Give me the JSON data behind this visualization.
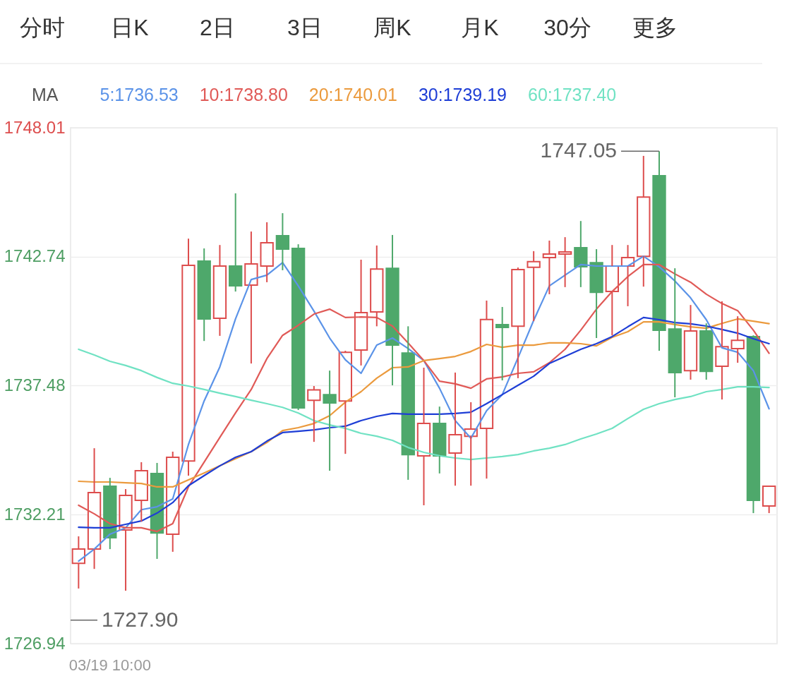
{
  "chart_data": {
    "type": "candlestick",
    "categories": [
      null,
      null,
      "03/19 10:00",
      null,
      null,
      null,
      null,
      null,
      null,
      null,
      null,
      null,
      null,
      null,
      null,
      null,
      null,
      null,
      null,
      null,
      null,
      null,
      null,
      null,
      null,
      null,
      null,
      null,
      null,
      null,
      null,
      null,
      null,
      null,
      null,
      null,
      null,
      null,
      null,
      null,
      null,
      null,
      null,
      null,
      null
    ],
    "ohlc": [
      [
        1730.22,
        1731.32,
        1729.19,
        1730.8
      ],
      [
        1730.8,
        1734.92,
        1729.99,
        1733.11
      ],
      [
        1733.37,
        1733.71,
        1730.8,
        1731.26
      ],
      [
        1731.58,
        1733.25,
        1729.1,
        1732.99
      ],
      [
        1732.79,
        1734.35,
        1731.92,
        1734.0
      ],
      [
        1733.89,
        1734.32,
        1730.4,
        1731.46
      ],
      [
        1731.41,
        1734.78,
        1730.69,
        1734.55
      ],
      [
        1734.4,
        1743.48,
        1733.8,
        1742.39
      ],
      [
        1742.56,
        1743.08,
        1739.3,
        1740.2
      ],
      [
        1740.23,
        1743.22,
        1739.51,
        1742.36
      ],
      [
        1742.36,
        1745.33,
        1741.32,
        1741.55
      ],
      [
        1741.58,
        1743.77,
        1738.38,
        1742.45
      ],
      [
        1742.36,
        1744.15,
        1741.7,
        1743.31
      ],
      [
        1743.6,
        1744.52,
        1742.19,
        1743.05
      ],
      [
        1743.08,
        1743.25,
        1736.48,
        1736.57
      ],
      [
        1736.88,
        1737.46,
        1735.18,
        1737.3
      ],
      [
        1737.11,
        1738.09,
        1734.0,
        1736.77
      ],
      [
        1736.85,
        1738.9,
        1734.69,
        1738.84
      ],
      [
        1738.93,
        1742.62,
        1738.3,
        1740.46
      ],
      [
        1740.49,
        1743.2,
        1739.9,
        1742.24
      ],
      [
        1742.27,
        1743.63,
        1737.49,
        1739.13
      ],
      [
        1738.81,
        1739.9,
        1733.63,
        1734.66
      ],
      [
        1734.61,
        1738.21,
        1732.59,
        1735.93
      ],
      [
        1735.93,
        1736.62,
        1733.89,
        1734.61
      ],
      [
        1734.72,
        1738.01,
        1733.39,
        1735.47
      ],
      [
        1735.41,
        1736.8,
        1733.39,
        1735.7
      ],
      [
        1735.73,
        1740.95,
        1733.68,
        1740.18
      ],
      [
        1739.97,
        1740.69,
        1737.69,
        1739.85
      ],
      [
        1739.9,
        1742.3,
        1737.78,
        1742.22
      ],
      [
        1742.31,
        1742.97,
        1740.11,
        1742.54
      ],
      [
        1742.71,
        1743.4,
        1741.21,
        1742.85
      ],
      [
        1742.85,
        1743.54,
        1741.5,
        1742.94
      ],
      [
        1743.11,
        1744.2,
        1741.5,
        1742.33
      ],
      [
        1742.5,
        1743.05,
        1739.42,
        1741.29
      ],
      [
        1741.32,
        1743.22,
        1739.53,
        1742.36
      ],
      [
        1742.36,
        1743.22,
        1740.72,
        1742.71
      ],
      [
        1742.76,
        1746.86,
        1741.52,
        1745.18
      ],
      [
        1746.05,
        1747.05,
        1738.9,
        1739.74
      ],
      [
        1739.79,
        1742.27,
        1737.0,
        1738.01
      ],
      [
        1738.09,
        1740.77,
        1737.72,
        1739.71
      ],
      [
        1739.71,
        1740.02,
        1737.72,
        1738.06
      ],
      [
        1738.27,
        1740.92,
        1736.91,
        1739.07
      ],
      [
        1738.99,
        1740.31,
        1738.41,
        1739.33
      ],
      [
        1739.48,
        1739.53,
        1732.27,
        1732.79
      ],
      [
        1732.56,
        1733.37,
        1732.27,
        1733.37
      ]
    ],
    "colors": [
      "#dd4d4d",
      "#dd4d4d",
      "#4ea86b",
      "#dd4d4d",
      "#dd4d4d",
      "#4ea86b",
      "#dd4d4d",
      "#dd4d4d",
      "#4ea86b",
      "#dd4d4d",
      "#4ea86b",
      "#dd4d4d",
      "#dd4d4d",
      "#4ea86b",
      "#4ea86b",
      "#dd4d4d",
      "#4ea86b",
      "#dd4d4d",
      "#dd4d4d",
      "#dd4d4d",
      "#4ea86b",
      "#4ea86b",
      "#dd4d4d",
      "#4ea86b",
      "#dd4d4d",
      "#dd4d4d",
      "#dd4d4d",
      "#4ea86b",
      "#dd4d4d",
      "#dd4d4d",
      "#dd4d4d",
      "#dd4d4d",
      "#4ea86b",
      "#4ea86b",
      "#dd4d4d",
      "#dd4d4d",
      "#dd4d4d",
      "#4ea86b",
      "#4ea86b",
      "#dd4d4d",
      "#4ea86b",
      "#dd4d4d",
      "#dd4d4d",
      "#4ea86b",
      "#dd4d4d"
    ],
    "series": [
      {
        "type": "line",
        "name": "5:1736.53",
        "color": "#5b93e8",
        "values": [
          1730.31,
          1730.8,
          1731.41,
          1731.67,
          1732.41,
          1732.53,
          1732.85,
          1735.07,
          1736.85,
          1738.24,
          1740.2,
          1741.81,
          1741.99,
          1742.5,
          1741.55,
          1740.52,
          1739.42,
          1738.53,
          1737.98,
          1739.13,
          1739.42,
          1738.99,
          1738.5,
          1737.37,
          1736.05,
          1735.33,
          1736.45,
          1737.11,
          1738.61,
          1740.14,
          1741.55,
          1741.99,
          1742.42,
          1742.36,
          1742.36,
          1742.36,
          1742.76,
          1742.33,
          1741.75,
          1741.06,
          1740.17,
          1739.02,
          1738.84,
          1738.09,
          1736.53
        ]
      },
      {
        "type": "line",
        "name": "10:1738.80",
        "color": "#e05a57",
        "values": [
          1732.59,
          1732.24,
          1731.84,
          1731.67,
          1731.67,
          1731.52,
          1731.84,
          1733.34,
          1734.35,
          1735.36,
          1736.36,
          1737.32,
          1738.58,
          1739.53,
          1739.94,
          1740.4,
          1740.6,
          1740.26,
          1740.28,
          1740.26,
          1739.91,
          1739.22,
          1738.5,
          1737.66,
          1737.55,
          1737.37,
          1737.75,
          1737.83,
          1737.98,
          1738.04,
          1738.41,
          1738.96,
          1739.74,
          1740.6,
          1741.32,
          1741.93,
          1742.42,
          1742.42,
          1742.04,
          1741.7,
          1741.21,
          1740.83,
          1740.54,
          1739.74,
          1738.8
        ]
      },
      {
        "type": "line",
        "name": "20:1740.01",
        "color": "#eb9a3d",
        "values": [
          1733.57,
          1733.54,
          1733.54,
          1733.51,
          1733.48,
          1733.34,
          1733.34,
          1733.63,
          1733.91,
          1734.2,
          1734.49,
          1734.78,
          1735.15,
          1735.64,
          1735.76,
          1735.93,
          1736.25,
          1736.8,
          1737.23,
          1737.78,
          1738.21,
          1738.24,
          1738.5,
          1738.58,
          1738.67,
          1738.87,
          1739.16,
          1739.04,
          1739.13,
          1739.13,
          1739.22,
          1739.22,
          1739.19,
          1739.1,
          1739.45,
          1739.68,
          1740.08,
          1740.08,
          1739.97,
          1739.88,
          1739.82,
          1740.02,
          1740.2,
          1740.11,
          1740.01
        ]
      },
      {
        "type": "line",
        "name": "30:1739.19",
        "color": "#1e3ed6",
        "values": [
          1731.69,
          1731.67,
          1731.67,
          1731.81,
          1731.95,
          1732.27,
          1732.7,
          1733.39,
          1733.8,
          1734.2,
          1734.55,
          1734.78,
          1735.21,
          1735.56,
          1735.61,
          1735.67,
          1735.76,
          1735.82,
          1736.05,
          1736.22,
          1736.34,
          1736.31,
          1736.31,
          1736.31,
          1736.34,
          1736.39,
          1736.74,
          1737.11,
          1737.49,
          1737.86,
          1738.38,
          1738.67,
          1738.96,
          1739.19,
          1739.48,
          1739.88,
          1740.26,
          1740.17,
          1740.05,
          1740.0,
          1739.91,
          1739.77,
          1739.62,
          1739.39,
          1739.19
        ]
      },
      {
        "type": "line",
        "name": "60:1737.40",
        "color": "#70e2c3",
        "values": [
          1738.96,
          1738.73,
          1738.47,
          1738.3,
          1738.09,
          1737.81,
          1737.57,
          1737.46,
          1737.32,
          1737.17,
          1737.03,
          1736.88,
          1736.74,
          1736.59,
          1736.36,
          1736.05,
          1735.87,
          1735.73,
          1735.53,
          1735.41,
          1735.24,
          1734.95,
          1734.75,
          1734.61,
          1734.52,
          1734.46,
          1734.52,
          1734.58,
          1734.66,
          1734.81,
          1734.92,
          1735.07,
          1735.3,
          1735.5,
          1735.73,
          1736.13,
          1736.51,
          1736.74,
          1736.91,
          1737.03,
          1737.23,
          1737.32,
          1737.43,
          1737.43,
          1737.4
        ]
      }
    ],
    "ylim": [
      1726.94,
      1748.01
    ],
    "yticks": [
      1726.94,
      1732.21,
      1737.48,
      1742.74,
      1748.01
    ],
    "grid": "y",
    "legend": "top left",
    "legend_title": "MA",
    "ref_lines": [
      {
        "axis": "y",
        "value": 1747.05,
        "label": "1747.05",
        "color": "#666666"
      },
      {
        "axis": "y",
        "value": 1727.9,
        "label": "1727.90",
        "color": "#666666"
      }
    ],
    "annotations": [
      "分时",
      "日K",
      "2日",
      "3日",
      "周K",
      "月K",
      "30分",
      "更多"
    ]
  }
}
